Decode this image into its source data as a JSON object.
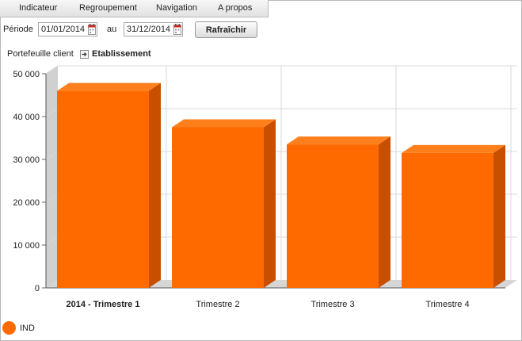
{
  "menu": {
    "items": [
      {
        "label": "Indicateur"
      },
      {
        "label": "Regroupement"
      },
      {
        "label": "Navigation"
      },
      {
        "label": "A propos"
      }
    ]
  },
  "period": {
    "label": "Période",
    "from": "01/01/2014",
    "separator": "au",
    "to": "31/12/2014",
    "refresh_label": "Rafraîchir"
  },
  "breadcrumb": {
    "root": "Portefeuille client",
    "current": "Etablissement"
  },
  "colors": {
    "bar_front": "#ff6a00",
    "bar_side": "#c84f00",
    "bar_top": "#ff7f1c",
    "accent": "#ff6a00"
  },
  "chart_data": {
    "type": "bar",
    "categories": [
      "2014 - Trimestre 1",
      "Trimestre 2",
      "Trimestre 3",
      "Trimestre 4"
    ],
    "highlighted_category": "2014 - Trimestre 1",
    "series": [
      {
        "name": "IND",
        "values": [
          46000,
          37500,
          33500,
          31500
        ]
      }
    ],
    "ylim": [
      0,
      50000
    ],
    "yticks": [
      {
        "value": 0,
        "label": "0"
      },
      {
        "value": 10000,
        "label": "10 000"
      },
      {
        "value": 20000,
        "label": "20 000"
      },
      {
        "value": 30000,
        "label": "30 000"
      },
      {
        "value": 40000,
        "label": "40 000"
      },
      {
        "value": 50000,
        "label": "50 000"
      }
    ],
    "grid": true,
    "three_d": true,
    "legend_position": "bottom-left"
  }
}
